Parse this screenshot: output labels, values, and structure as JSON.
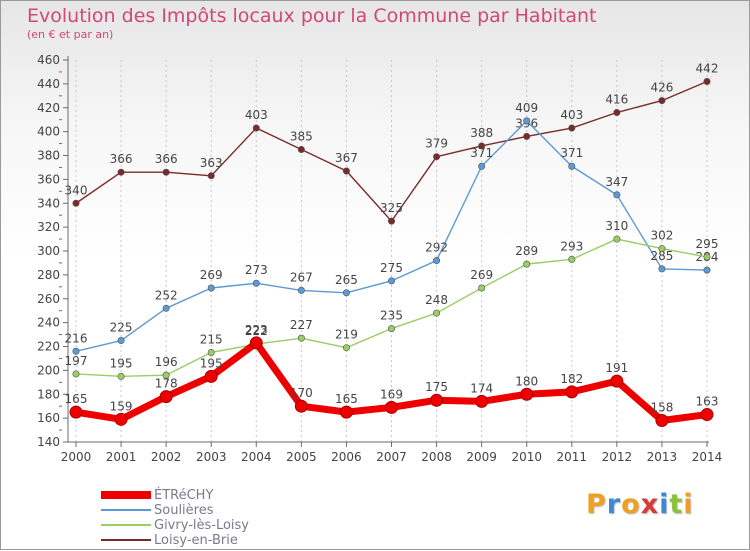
{
  "header": {
    "title": "Evolution des Impôts locaux pour la Commune par Habitant",
    "subtitle": "(en € et par an)"
  },
  "logo": {
    "letters": [
      "P",
      "r",
      "o",
      "x",
      "i",
      "t",
      "i"
    ],
    "colors": [
      "#f0a020",
      "#3a8ad8",
      "#f0a020",
      "#d83a3a",
      "#3a8ad8",
      "#8ac23a",
      "#f0a020"
    ]
  },
  "colors": {
    "ETRECHY": "#ee0000",
    "Soulieres": "#5b9bd5",
    "Givry": "#9acd64",
    "Loisy": "#7a2a2a",
    "axis": "#6b6b6b",
    "grid": "#c8c8c8",
    "label": "#444444"
  },
  "chart_data": {
    "type": "line",
    "title": "Evolution des Impôts locaux pour la Commune par Habitant",
    "ylabel": "(en € et par an)",
    "x": [
      "2000",
      "2001",
      "2002",
      "2003",
      "2004",
      "2005",
      "2006",
      "2007",
      "2008",
      "2009",
      "2010",
      "2011",
      "2012",
      "2013",
      "2014"
    ],
    "ylim": [
      140,
      460
    ],
    "ytick_step": 20,
    "yticks": [
      "140",
      "160",
      "180",
      "200",
      "220",
      "240",
      "260",
      "280",
      "300",
      "320",
      "340",
      "360",
      "380",
      "400",
      "420",
      "440",
      "460"
    ],
    "grid": "vertical dashed",
    "legend_position": "bottom-left",
    "series": [
      {
        "name": "Loisy-en-Brie",
        "color": "#7a2a2a",
        "values": [
          340,
          366,
          366,
          363,
          403,
          385,
          367,
          325,
          379,
          388,
          396,
          403,
          416,
          426,
          442
        ]
      },
      {
        "name": "Soulières",
        "color": "#5b9bd5",
        "values": [
          216,
          225,
          252,
          269,
          273,
          267,
          265,
          275,
          292,
          371,
          409,
          371,
          347,
          285,
          284
        ]
      },
      {
        "name": "Givry-lès-Loisy",
        "color": "#9acd64",
        "values": [
          197,
          195,
          196,
          215,
          222,
          227,
          219,
          235,
          248,
          269,
          289,
          293,
          310,
          302,
          295
        ]
      },
      {
        "name": "ÉTRéCHY",
        "color": "#ee0000",
        "values": [
          165,
          159,
          178,
          195,
          223,
          170,
          165,
          169,
          175,
          174,
          180,
          182,
          191,
          158,
          163
        ]
      }
    ]
  },
  "legend": {
    "items": [
      {
        "label": "ÉTRéCHY",
        "color": "#ee0000",
        "width": 8
      },
      {
        "label": "Soulières",
        "color": "#5b9bd5",
        "width": 2
      },
      {
        "label": "Givry-lès-Loisy",
        "color": "#9acd64",
        "width": 2
      },
      {
        "label": "Loisy-en-Brie",
        "color": "#7a2a2a",
        "width": 2
      }
    ]
  }
}
